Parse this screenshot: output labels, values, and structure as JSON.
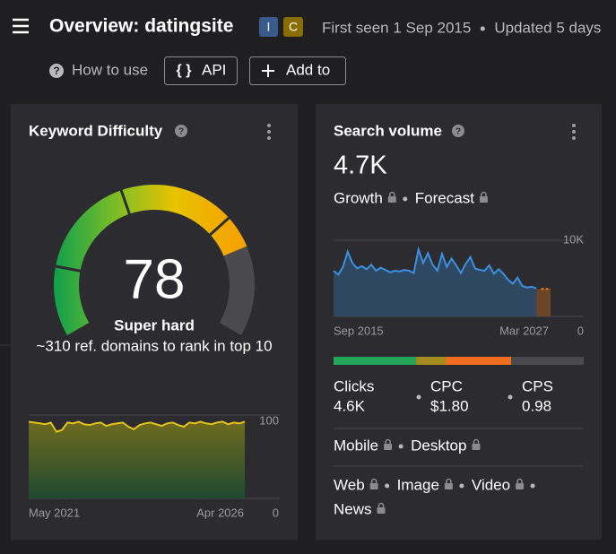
{
  "header": {
    "title": "Overview: datingsite",
    "badges": [
      "I",
      "C"
    ],
    "first_seen": "First seen 1 Sep 2015",
    "updated": "Updated 5 days"
  },
  "toolbar": {
    "how_to_use": "How to use",
    "api": "API",
    "add_to": "Add to"
  },
  "keyword_difficulty": {
    "title": "Keyword Difficulty",
    "score": 78,
    "label": "Super hard",
    "note": "~310 ref. domains to rank in top 10",
    "trend": {
      "type": "area",
      "x_start": "May 2021",
      "x_end": "Apr 2026",
      "ylim": [
        0,
        100
      ],
      "yticks": [
        0,
        100
      ],
      "color": "#e3c21a",
      "values": [
        92,
        91,
        90,
        89,
        91,
        80,
        82,
        91,
        90,
        92,
        89,
        88,
        90,
        91,
        87,
        89,
        90,
        91,
        86,
        83,
        88,
        90,
        91,
        89,
        87,
        90,
        91,
        88,
        86,
        91,
        90,
        92,
        90,
        89,
        91,
        92,
        89,
        91,
        90,
        92
      ]
    }
  },
  "search_volume": {
    "title": "Search volume",
    "volume": "4.7K",
    "growth": "Growth",
    "forecast": "Forecast",
    "chart": {
      "type": "area",
      "x_start": "Sep 2015",
      "x_end": "Mar 2027",
      "ylim": [
        0,
        10000
      ],
      "yticks": [
        0,
        {
          "value": 10000,
          "label": "10K"
        }
      ],
      "color": "#3d8fe0",
      "forecast_color": "#f07f1e",
      "values": [
        6000,
        5500,
        6500,
        8500,
        7000,
        6300,
        6600,
        6200,
        6800,
        6000,
        6400,
        6100,
        5800,
        6000,
        5900,
        6100,
        6000,
        5700,
        8800,
        7000,
        8300,
        6800,
        6000,
        8200,
        6500,
        7600,
        6700,
        5700,
        6900,
        7800,
        6300,
        6100,
        6000,
        6700,
        5600,
        6200,
        5600,
        4800,
        4300,
        5100,
        4000,
        3800,
        3900,
        3700
      ],
      "forecast_values": [
        3600,
        3600,
        3600
      ]
    },
    "click_distribution": [
      {
        "color": "#23a55a",
        "value": 33
      },
      {
        "color": "#a58c1c",
        "value": 12
      },
      {
        "color": "#f26d1f",
        "value": 26
      },
      {
        "color": "#4a4a4e",
        "value": 29
      }
    ],
    "metrics": [
      {
        "label": "Clicks",
        "value": "4.6K"
      },
      {
        "label": "CPC",
        "value": "$1.80"
      },
      {
        "label": "CPS",
        "value": "0.98"
      }
    ],
    "devices": [
      "Mobile",
      "Desktop"
    ],
    "serp_types": [
      "Web",
      "Image",
      "Video",
      "News"
    ]
  }
}
